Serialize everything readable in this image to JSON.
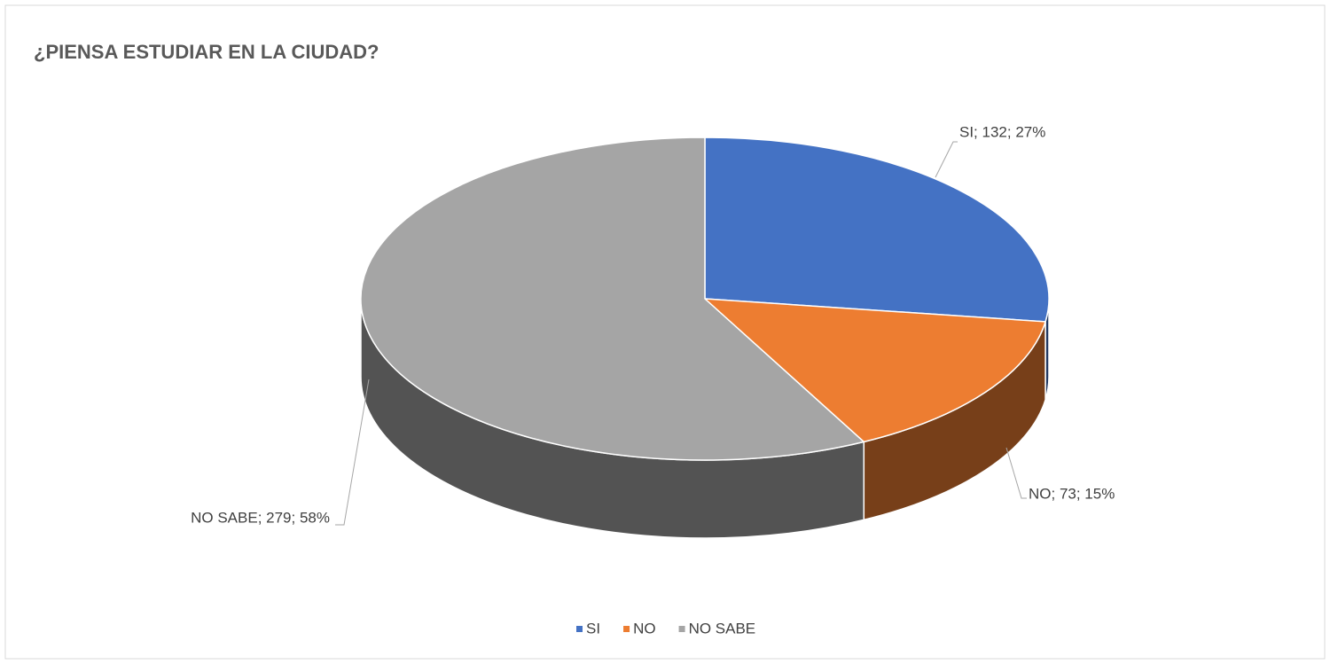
{
  "chart_data": {
    "type": "pie",
    "title": "¿PIENSA ESTUDIAR EN LA CIUDAD?",
    "categories": [
      "SI",
      "NO",
      "NO SABE"
    ],
    "values": [
      132,
      73,
      279
    ],
    "value_labels": [
      "SI; 132; 27%",
      "NO; 73; 15%",
      "NO SABE; 279; 58%"
    ],
    "colors": [
      "#4472c4",
      "#ed7d31",
      "#a5a5a5"
    ],
    "legend": "bottom"
  }
}
